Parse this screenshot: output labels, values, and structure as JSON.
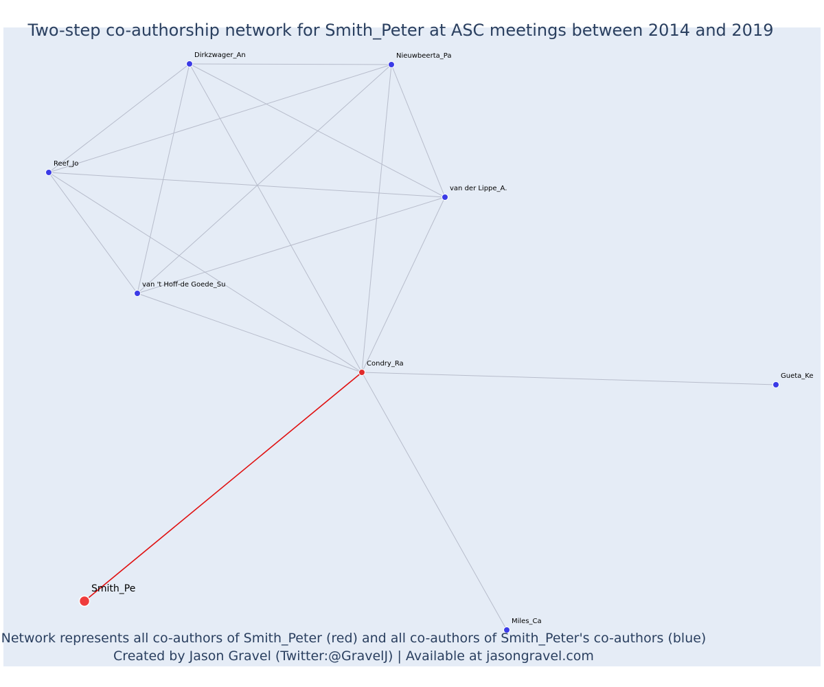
{
  "title": "Two-step co-authorship network for Smith_Peter at ASC meetings between 2014 and 2019",
  "caption": {
    "line1": "Network represents all co-authors of Smith_Peter (red) and all co-authors of Smith_Peter's co-authors (blue)",
    "line2": "Created by Jason Gravel (Twitter:@GravelJ) | Available at jasongravel.com"
  },
  "colors": {
    "background": "#e5ecf6",
    "focal": "#ef3c3c",
    "coauthor": "#e02a2a",
    "second_step": "#3b3be6",
    "edge": "#b7bccb",
    "focal_edge": "#e01010"
  },
  "nodes": [
    {
      "id": "dirkzwager",
      "label": "Dirkzwager_An",
      "type": "second_step"
    },
    {
      "id": "nieuwbeerta",
      "label": "Nieuwbeerta_Pa",
      "type": "second_step"
    },
    {
      "id": "reef",
      "label": "Reef_Jo",
      "type": "second_step"
    },
    {
      "id": "vanderlippe",
      "label": "van der Lippe_A.",
      "type": "second_step"
    },
    {
      "id": "vanthoff",
      "label": "van 't Hoff-de Goede_Su",
      "type": "second_step"
    },
    {
      "id": "condry",
      "label": "Condry_Ra",
      "type": "coauthor"
    },
    {
      "id": "gueta",
      "label": "Gueta_Ke",
      "type": "second_step"
    },
    {
      "id": "smith",
      "label": "Smith_Pe",
      "type": "focal"
    },
    {
      "id": "miles",
      "label": "Miles_Ca",
      "type": "second_step"
    }
  ],
  "edges": [
    [
      "dirkzwager",
      "nieuwbeerta"
    ],
    [
      "dirkzwager",
      "reef"
    ],
    [
      "dirkzwager",
      "vanderlippe"
    ],
    [
      "dirkzwager",
      "vanthoff"
    ],
    [
      "dirkzwager",
      "condry"
    ],
    [
      "nieuwbeerta",
      "reef"
    ],
    [
      "nieuwbeerta",
      "vanderlippe"
    ],
    [
      "nieuwbeerta",
      "vanthoff"
    ],
    [
      "nieuwbeerta",
      "condry"
    ],
    [
      "reef",
      "vanderlippe"
    ],
    [
      "reef",
      "vanthoff"
    ],
    [
      "reef",
      "condry"
    ],
    [
      "vanderlippe",
      "vanthoff"
    ],
    [
      "vanderlippe",
      "condry"
    ],
    [
      "vanthoff",
      "condry"
    ],
    [
      "condry",
      "gueta"
    ],
    [
      "condry",
      "miles"
    ],
    [
      "condry",
      "smith"
    ]
  ]
}
